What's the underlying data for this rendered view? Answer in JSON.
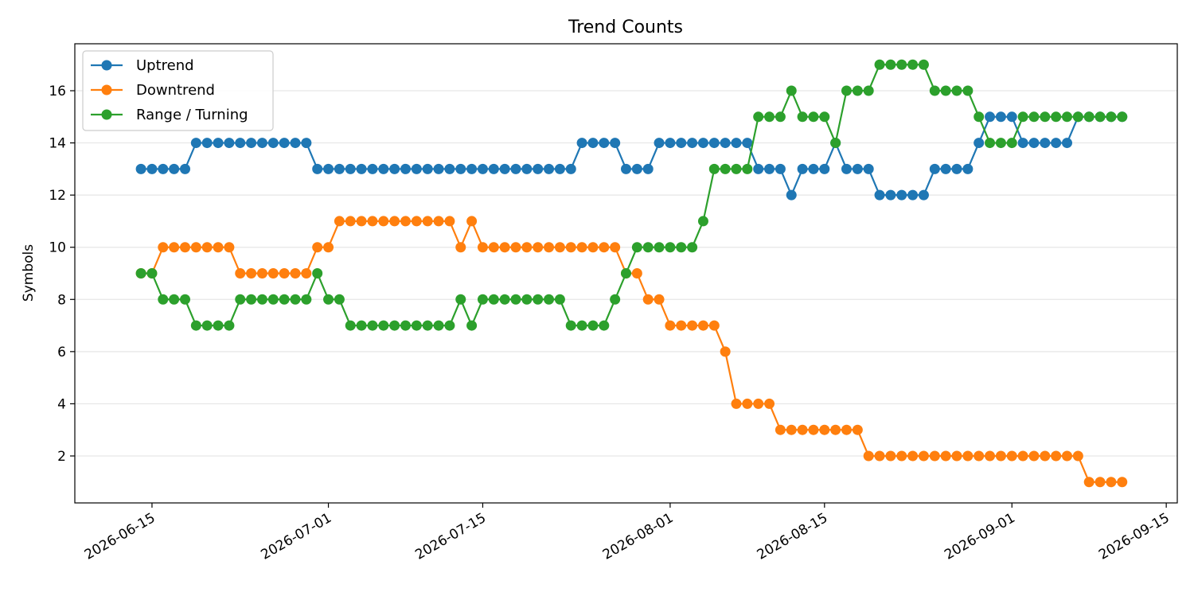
{
  "chart_data": {
    "type": "line",
    "title": "Trend Counts",
    "xlabel": "",
    "ylabel": "Symbols",
    "x_start": "2026-06-14",
    "x_tick_labels": [
      "2026-06-15",
      "2026-07-01",
      "2026-07-15",
      "2026-08-01",
      "2026-08-15",
      "2026-09-01",
      "2026-09-15"
    ],
    "y_ticks": [
      2,
      4,
      6,
      8,
      10,
      12,
      14,
      16
    ],
    "ylim": [
      0.2,
      17.8
    ],
    "xlim": [
      "2026-06-08",
      "2026-09-16"
    ],
    "grid": "y-only",
    "legend_position": "top-left",
    "series": [
      {
        "name": "Uptrend",
        "color": "#1f77b4",
        "values": [
          13,
          13,
          13,
          13,
          13,
          14,
          14,
          14,
          14,
          14,
          14,
          14,
          14,
          14,
          14,
          14,
          13,
          13,
          13,
          13,
          13,
          13,
          13,
          13,
          13,
          13,
          13,
          13,
          13,
          13,
          13,
          13,
          13,
          13,
          13,
          13,
          13,
          13,
          13,
          13,
          14,
          14,
          14,
          14,
          13,
          13,
          13,
          14,
          14,
          14,
          14,
          14,
          14,
          14,
          14,
          14,
          13,
          13,
          13,
          12,
          13,
          13,
          13,
          14,
          13,
          13,
          13,
          12,
          12,
          12,
          12,
          12,
          13,
          13,
          13,
          13,
          14,
          15,
          15,
          15,
          14,
          14,
          14,
          14,
          14,
          15,
          15,
          15,
          15,
          15
        ]
      },
      {
        "name": "Downtrend",
        "color": "#ff7f0e",
        "values": [
          9,
          9,
          10,
          10,
          10,
          10,
          10,
          10,
          10,
          9,
          9,
          9,
          9,
          9,
          9,
          9,
          10,
          10,
          11,
          11,
          11,
          11,
          11,
          11,
          11,
          11,
          11,
          11,
          11,
          10,
          11,
          10,
          10,
          10,
          10,
          10,
          10,
          10,
          10,
          10,
          10,
          10,
          10,
          10,
          9,
          9,
          8,
          8,
          7,
          7,
          7,
          7,
          7,
          6,
          4,
          4,
          4,
          4,
          3,
          3,
          3,
          3,
          3,
          3,
          3,
          3,
          2,
          2,
          2,
          2,
          2,
          2,
          2,
          2,
          2,
          2,
          2,
          2,
          2,
          2,
          2,
          2,
          2,
          2,
          2,
          2,
          1,
          1,
          1,
          1
        ]
      },
      {
        "name": "Range / Turning",
        "color": "#2ca02c",
        "values": [
          9,
          9,
          8,
          8,
          8,
          7,
          7,
          7,
          7,
          8,
          8,
          8,
          8,
          8,
          8,
          8,
          9,
          8,
          8,
          7,
          7,
          7,
          7,
          7,
          7,
          7,
          7,
          7,
          7,
          8,
          7,
          8,
          8,
          8,
          8,
          8,
          8,
          8,
          8,
          7,
          7,
          7,
          7,
          8,
          9,
          10,
          10,
          10,
          10,
          10,
          10,
          11,
          13,
          13,
          13,
          13,
          15,
          15,
          15,
          16,
          15,
          15,
          15,
          14,
          16,
          16,
          16,
          17,
          17,
          17,
          17,
          17,
          16,
          16,
          16,
          16,
          15,
          14,
          14,
          14,
          15,
          15,
          15,
          15,
          15,
          15,
          15,
          15,
          15,
          15
        ]
      }
    ]
  }
}
